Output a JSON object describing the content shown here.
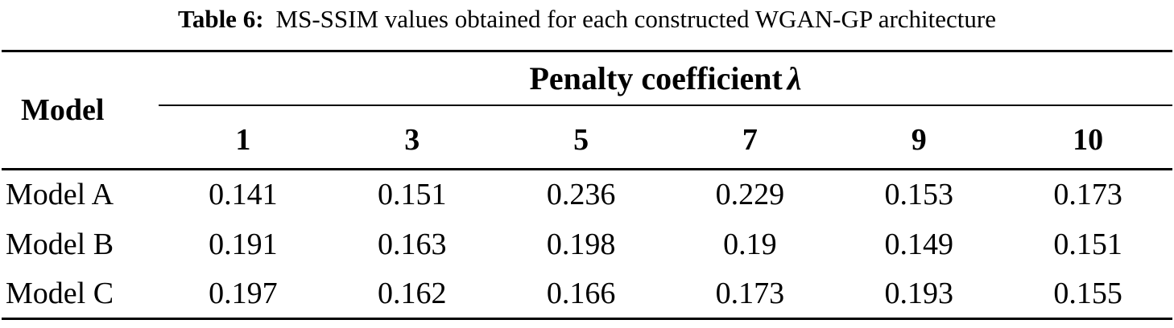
{
  "caption": {
    "label": "Table 6:",
    "text": "MS-SSIM values obtained for each constructed WGAN-GP architecture"
  },
  "table": {
    "corner_header": "Model",
    "group_header_text": "Penalty coefficient",
    "group_header_symbol": "λ",
    "columns": [
      "1",
      "3",
      "5",
      "7",
      "9",
      "10"
    ],
    "rows": [
      {
        "label": "Model A",
        "values": [
          "0.141",
          "0.151",
          "0.236",
          "0.229",
          "0.153",
          "0.173"
        ]
      },
      {
        "label": "Model B",
        "values": [
          "0.191",
          "0.163",
          "0.198",
          "0.19",
          "0.149",
          "0.151"
        ]
      },
      {
        "label": "Model C",
        "values": [
          "0.197",
          "0.162",
          "0.166",
          "0.173",
          "0.193",
          "0.155"
        ]
      }
    ]
  },
  "chart_data": {
    "type": "table",
    "title": "Table 6: MS-SSIM values obtained for each constructed WGAN-GP architecture",
    "row_header": "Model",
    "column_group_header": "Penalty coefficient λ",
    "columns": [
      "1",
      "3",
      "5",
      "7",
      "9",
      "10"
    ],
    "rows": [
      [
        "Model A",
        0.141,
        0.151,
        0.236,
        0.229,
        0.153,
        0.173
      ],
      [
        "Model B",
        0.191,
        0.163,
        0.198,
        0.19,
        0.149,
        0.151
      ],
      [
        "Model C",
        0.197,
        0.162,
        0.166,
        0.173,
        0.193,
        0.155
      ]
    ],
    "colors": {
      "text": "#000000",
      "background": "#ffffff",
      "rules": "#000000"
    }
  }
}
